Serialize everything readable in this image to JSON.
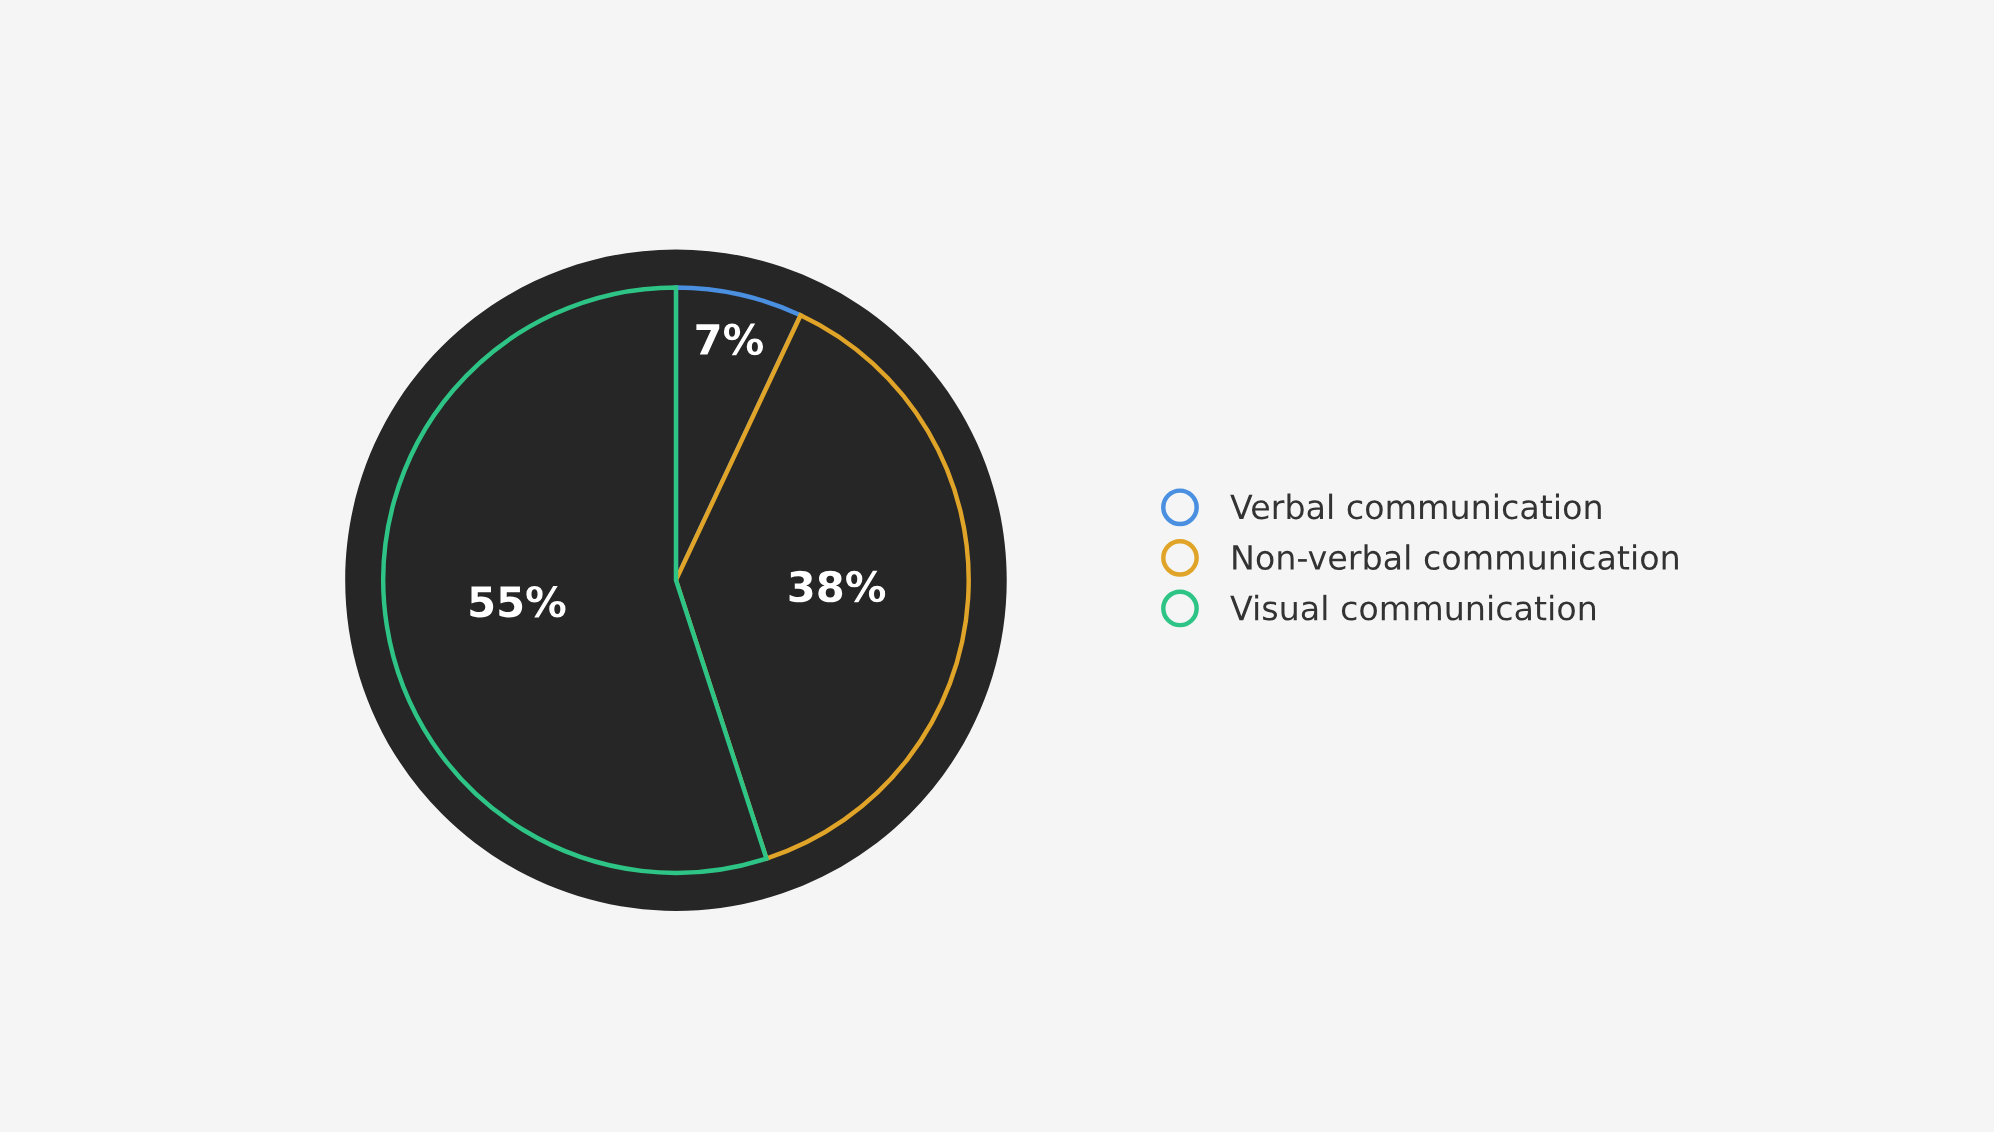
{
  "chart_data": {
    "type": "pie",
    "categories": [
      "Verbal communication",
      "Non-verbal communication",
      "Visual communication"
    ],
    "values": [
      7,
      38,
      55
    ],
    "colors": [
      "#4a8fe0",
      "#e0a428",
      "#2ec486"
    ],
    "value_labels": [
      "7%",
      "38%",
      "55%"
    ],
    "legend": "right"
  }
}
